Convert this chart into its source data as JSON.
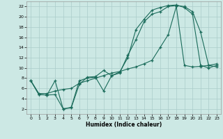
{
  "xlabel": "Humidex (Indice chaleur)",
  "bg_color": "#cce8e4",
  "grid_color": "#aaccca",
  "line_color": "#1a6b5a",
  "xlim": [
    -0.5,
    23.5
  ],
  "ylim": [
    1,
    23
  ],
  "xticks": [
    0,
    1,
    2,
    3,
    4,
    5,
    6,
    7,
    8,
    9,
    10,
    11,
    12,
    13,
    14,
    15,
    16,
    17,
    18,
    19,
    20,
    21,
    22,
    23
  ],
  "yticks": [
    2,
    4,
    6,
    8,
    10,
    12,
    14,
    16,
    18,
    20,
    22
  ],
  "series": [
    {
      "x": [
        0,
        1,
        2,
        3,
        4,
        5,
        6,
        7,
        8,
        9,
        10,
        11,
        12,
        13,
        14,
        15,
        16,
        17,
        18,
        19,
        20,
        21,
        22,
        23
      ],
      "y": [
        7.5,
        4.8,
        4.7,
        4.8,
        2.0,
        2.3,
        7.5,
        8.0,
        8.2,
        5.5,
        8.5,
        9.0,
        12.5,
        15.5,
        19.0,
        20.5,
        21.0,
        22.0,
        22.2,
        22.0,
        21.0,
        17.0,
        10.5,
        10.2
      ]
    },
    {
      "x": [
        0,
        1,
        2,
        3,
        4,
        5,
        6,
        7,
        8,
        9,
        10,
        11,
        12,
        13,
        14,
        15,
        16,
        17,
        18,
        19,
        20,
        21,
        22,
        23
      ],
      "y": [
        7.5,
        4.8,
        4.7,
        7.5,
        2.0,
        2.2,
        6.8,
        8.2,
        8.3,
        9.5,
        8.5,
        9.2,
        12.0,
        17.5,
        19.5,
        21.3,
        21.8,
        22.2,
        22.3,
        21.8,
        20.5,
        10.5,
        10.0,
        10.5
      ]
    },
    {
      "x": [
        0,
        1,
        2,
        3,
        4,
        5,
        6,
        7,
        8,
        9,
        10,
        11,
        12,
        13,
        14,
        15,
        16,
        17,
        18,
        19,
        20,
        21,
        22,
        23
      ],
      "y": [
        7.5,
        5.0,
        5.0,
        5.5,
        5.8,
        6.0,
        7.0,
        7.5,
        8.0,
        8.5,
        9.0,
        9.3,
        9.8,
        10.2,
        10.8,
        11.5,
        14.0,
        16.5,
        22.0,
        10.5,
        10.2,
        10.3,
        10.5,
        10.8
      ]
    }
  ]
}
